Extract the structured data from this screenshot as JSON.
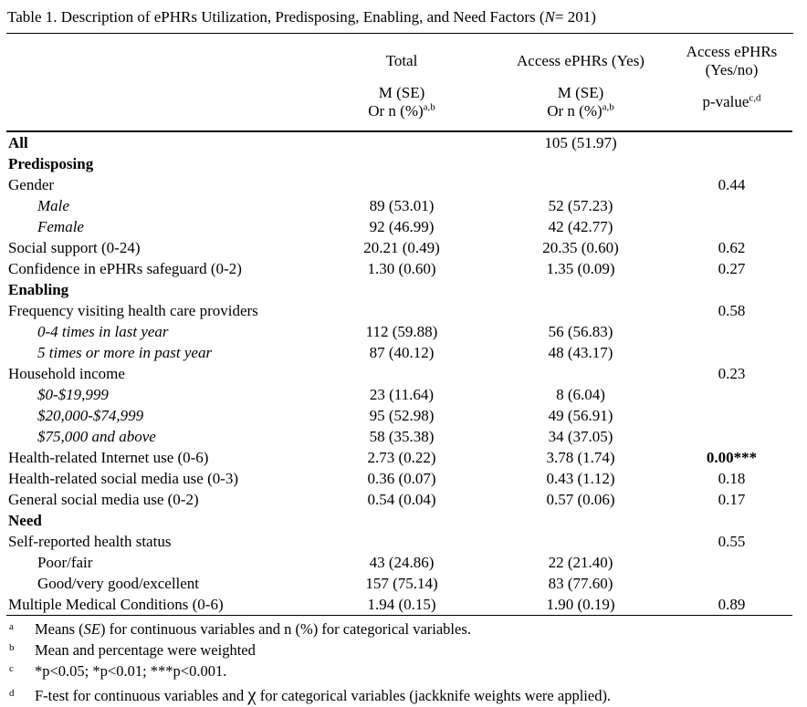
{
  "page": {
    "background_color": "#ffffff",
    "text_color": "#000000"
  },
  "table": {
    "title": {
      "prefix": "Table 1. Description of ePHRs Utilization, Predisposing, Enabling, and Need Factors (",
      "n_italic": "N",
      "suffix": "= 201)"
    },
    "header": {
      "col_total_title": "Total",
      "col_yes_title": "Access ePHRs (Yes)",
      "col_p_line1": "Access ePHRs",
      "col_p_line2": "(Yes/no)",
      "stat_line1": "M (SE)",
      "stat_line2": "Or n (%)",
      "stat_sup": "a,b",
      "p_label": "p-value",
      "p_sup": "c,d"
    },
    "rows": [
      {
        "label": "All",
        "bold": true,
        "total": "",
        "yes": "105 (51.97)",
        "p": ""
      },
      {
        "label": "Predisposing",
        "bold": true,
        "total": "",
        "yes": "",
        "p": ""
      },
      {
        "label": "Gender",
        "total": "",
        "yes": "",
        "p": "0.44"
      },
      {
        "label": "Male",
        "indent": true,
        "italic": true,
        "total": "89 (53.01)",
        "yes": "52 (57.23)",
        "p": ""
      },
      {
        "label": "Female",
        "indent": true,
        "italic": true,
        "total": "92 (46.99)",
        "yes": "42 (42.77)",
        "p": ""
      },
      {
        "label": "Social support (0-24)",
        "total": "20.21 (0.49)",
        "yes": "20.35 (0.60)",
        "p": "0.62"
      },
      {
        "label": "Confidence in ePHRs safeguard (0-2)",
        "total": "1.30 (0.60)",
        "yes": "1.35 (0.09)",
        "p": "0.27"
      },
      {
        "label": "Enabling",
        "bold": true,
        "total": "",
        "yes": "",
        "p": ""
      },
      {
        "label": "Frequency visiting health care providers",
        "total": "",
        "yes": "",
        "p": "0.58"
      },
      {
        "label": "0-4 times in last year",
        "indent": true,
        "italic": true,
        "total": "112 (59.88)",
        "yes": "56 (56.83)",
        "p": ""
      },
      {
        "label": "5 times or more in past year",
        "indent": true,
        "italic": true,
        "total": "87 (40.12)",
        "yes": "48 (43.17)",
        "p": ""
      },
      {
        "label": "Household income",
        "total": "",
        "yes": "",
        "p": "0.23"
      },
      {
        "label": "$0-$19,999",
        "indent": true,
        "italic": true,
        "total": "23 (11.64)",
        "yes": "8 (6.04)",
        "p": ""
      },
      {
        "label": "$20,000-$74,999",
        "indent": true,
        "italic": true,
        "total": "95 (52.98)",
        "yes": "49 (56.91)",
        "p": ""
      },
      {
        "label": "$75,000 and above",
        "indent": true,
        "italic": true,
        "total": "58 (35.38)",
        "yes": "34 (37.05)",
        "p": ""
      },
      {
        "label": "Health-related Internet use (0-6)",
        "total": "2.73 (0.22)",
        "yes": "3.78 (1.74)",
        "p": "0.00***",
        "p_bold": true
      },
      {
        "label": "Health-related social media use (0-3)",
        "total": "0.36 (0.07)",
        "yes": "0.43 (1.12)",
        "p": "0.18"
      },
      {
        "label": "General social media use (0-2)",
        "total": "0.54 (0.04)",
        "yes": "0.57 (0.06)",
        "p": "0.17"
      },
      {
        "label": "Need",
        "bold": true,
        "total": "",
        "yes": "",
        "p": ""
      },
      {
        "label": "Self-reported health status",
        "total": "",
        "yes": "",
        "p": "0.55"
      },
      {
        "label": "Poor/fair",
        "indent": true,
        "total": "43 (24.86)",
        "yes": "22 (21.40)",
        "p": ""
      },
      {
        "label": "Good/very good/excellent",
        "indent": true,
        "total": "157 (75.14)",
        "yes": "83 (77.60)",
        "p": ""
      },
      {
        "label": "Multiple Medical Conditions (0-6)",
        "total": "1.94 (0.15)",
        "yes": "1.90 (0.19)",
        "p": "0.89"
      }
    ],
    "footnotes": [
      {
        "mark": "a",
        "segments": [
          {
            "text": "Means ("
          },
          {
            "text": "SE",
            "italic": true
          },
          {
            "text": ") for continuous variables and n (%) for categorical variables."
          }
        ]
      },
      {
        "mark": "b",
        "segments": [
          {
            "text": "Mean and percentage were weighted"
          }
        ]
      },
      {
        "mark": "c",
        "segments": [
          {
            "text": "*p<0.05; *p<0.01; ***p<0.001."
          }
        ]
      },
      {
        "mark": "d",
        "gap": true,
        "segments": [
          {
            "text": "F-test for continuous variables and "
          },
          {
            "text": "χ",
            "chi": true
          },
          {
            "text": " for categorical variables (jackknife weights were applied)."
          }
        ]
      }
    ]
  }
}
